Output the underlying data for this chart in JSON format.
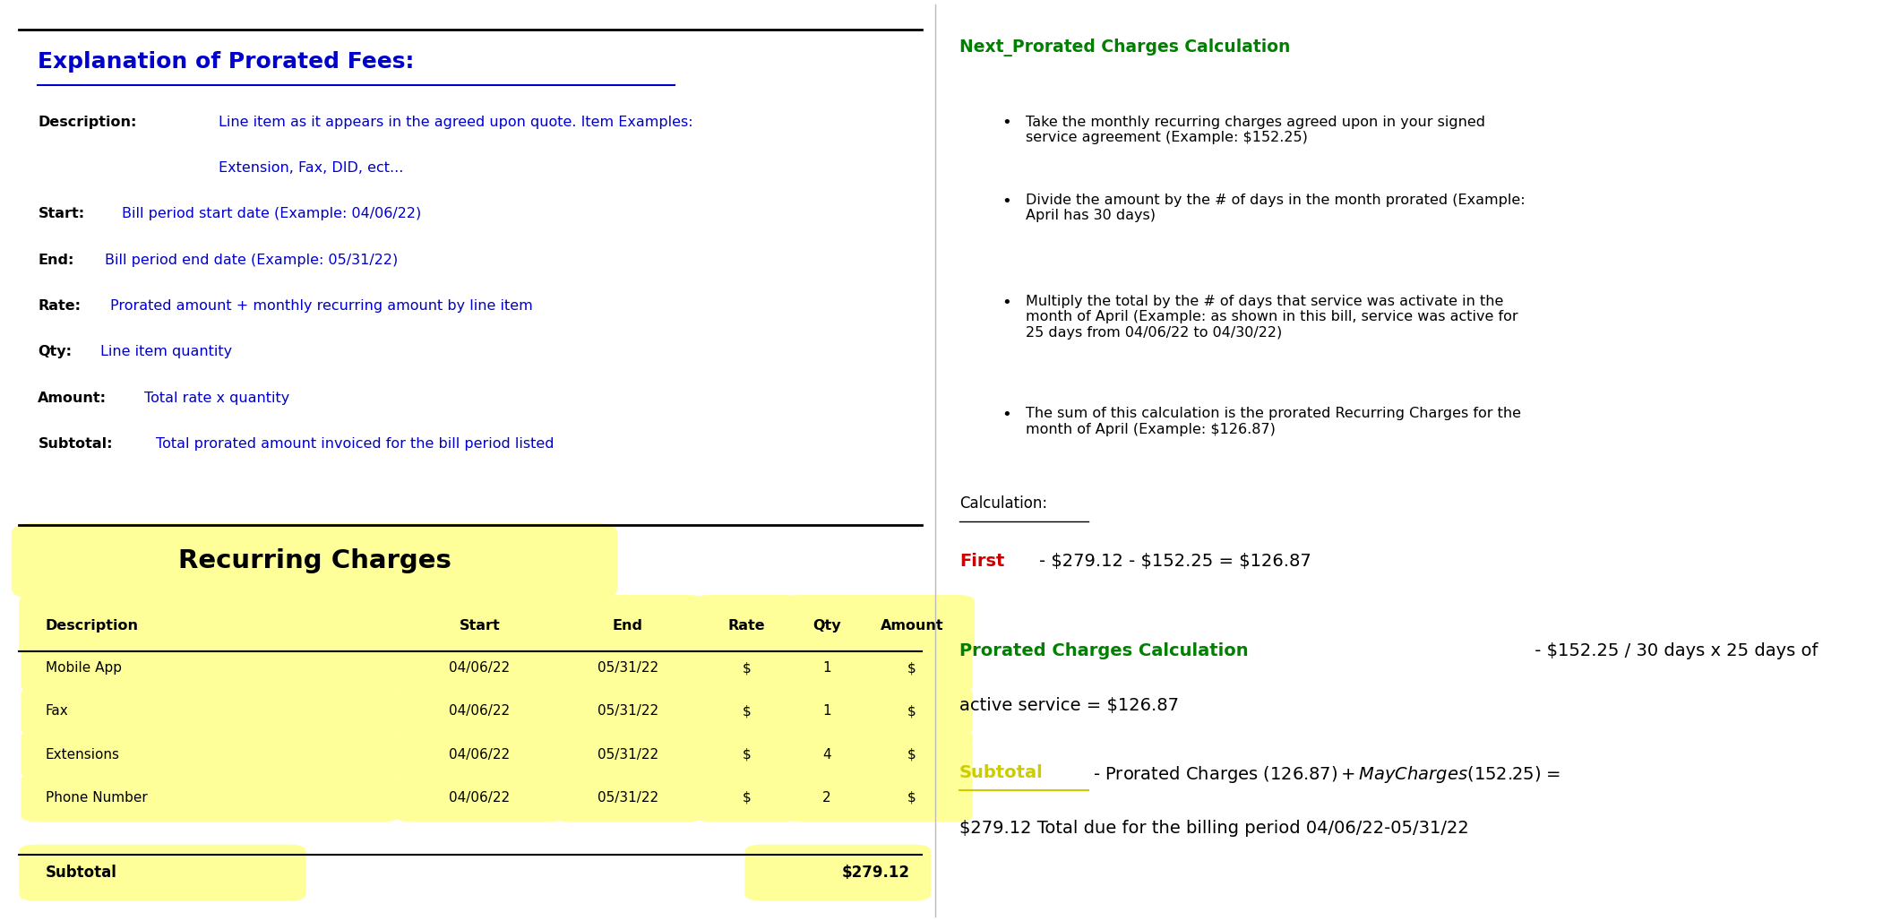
{
  "bg_color": "#ffffff",
  "left_panel": {
    "title": "Explanation of Prorated Fees:",
    "title_color": "#0000cc",
    "top_line_color": "#000000",
    "description_lines": [
      {
        "label": "Description:",
        "text": "Line item as it appears in the agreed upon quote. Item Examples:"
      },
      {
        "label": "",
        "text": "Extension, Fax, DID, ect..."
      },
      {
        "label": "Start:",
        "text": "Bill period start date (Example: 04/06/22)"
      },
      {
        "label": "End:",
        "text": "Bill period end date (Example: 05/31/22)"
      },
      {
        "label": "Rate:",
        "text": "Prorated amount + monthly recurring amount by line item"
      },
      {
        "label": "Qty:",
        "text": "Line item quantity"
      },
      {
        "label": "Amount:",
        "text": "Total rate x quantity"
      },
      {
        "label": "Subtotal:",
        "text": "Total prorated amount invoiced for the bill period listed"
      }
    ],
    "label_color": "#000000",
    "text_color": "#0000cc",
    "section2_title": "Recurring Charges",
    "section2_title_bg": "#ffff99",
    "section2_title_color": "#000000",
    "table_header": [
      "Description",
      "Start",
      "End",
      "Rate",
      "Qty",
      "Amount"
    ],
    "table_header_bg": "#ffff99",
    "table_rows": [
      {
        "desc": "Mobile App",
        "start": "04/06/22",
        "end": "05/31/22",
        "rate": "$",
        "qty": "1",
        "amount": "$"
      },
      {
        "desc": "Fax",
        "start": "04/06/22",
        "end": "05/31/22",
        "rate": "$",
        "qty": "1",
        "amount": "$"
      },
      {
        "desc": "Extensions",
        "start": "04/06/22",
        "end": "05/31/22",
        "rate": "$",
        "qty": "4",
        "amount": "$"
      },
      {
        "desc": "Phone Number",
        "start": "04/06/22",
        "end": "05/31/22",
        "rate": "$",
        "qty": "2",
        "amount": "$"
      }
    ],
    "row_bg": "#ffff99",
    "subtotal_label": "Subtotal",
    "subtotal_value": "$279.12",
    "subtotal_bg": "#ffff99"
  },
  "right_panel": {
    "title": "Next_Prorated Charges Calculation",
    "title_color": "#008000",
    "bullets": [
      "Take the monthly recurring charges agreed upon in your signed\nservice agreement (Example: $152.25)",
      "Divide the amount by the # of days in the month prorated (Example:\nApril has 30 days)",
      "Multiply the total by the # of days that service was activate in the\nmonth of April (Example: as shown in this bill, service was active for\n25 days from 04/06/22 to 04/30/22)",
      "The sum of this calculation is the prorated Recurring Charges for the\nmonth of April (Example: $126.87)"
    ],
    "bullet_color": "#000000",
    "calculation_label": "Calculation:",
    "first_red": "First",
    "first_black": "- $279.12 - $152.25 = $126.87",
    "prorated_green": "Prorated Charges Calculation",
    "prorated_black": " - $152.25 / 30 days x 25 days of",
    "prorated_black2": "active service = $126.87",
    "subtotal_yellow": "Subtotal",
    "subtotal_black": "- Prorated Charges ($126.87) + May Charges ($152.25) =",
    "subtotal_black2": "$279.12 Total due for the billing period 04/06/22-05/31/22"
  }
}
